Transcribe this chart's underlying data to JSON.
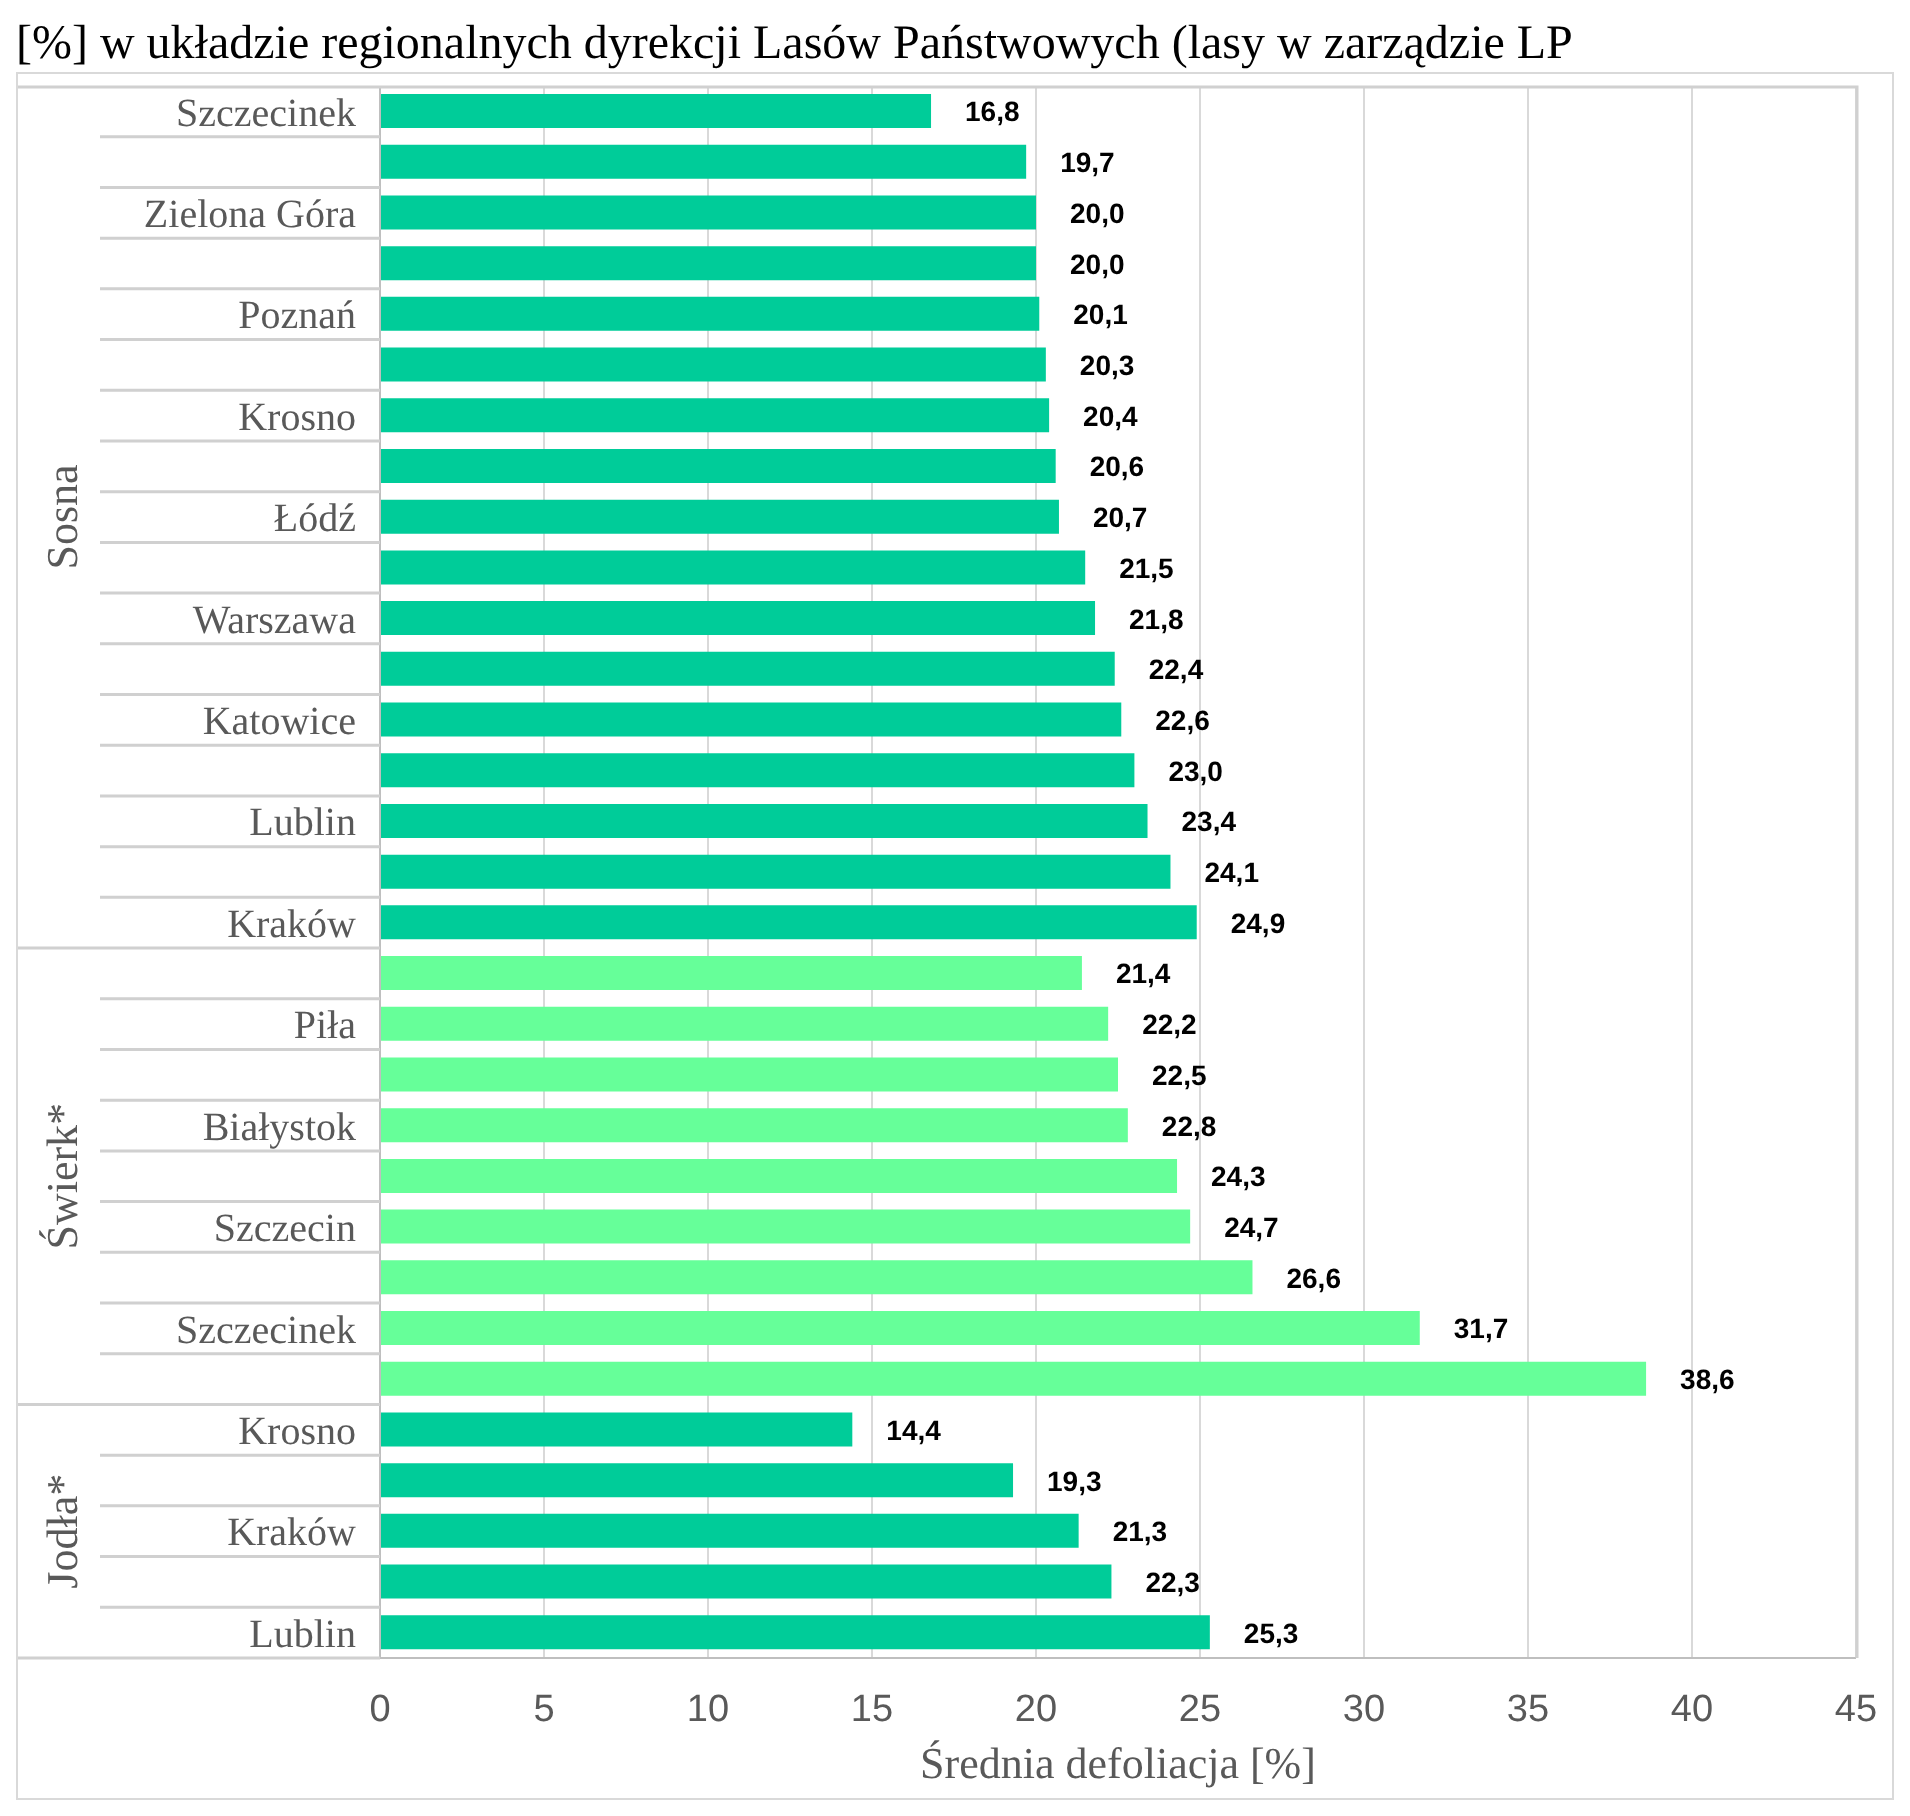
{
  "chart_data": {
    "type": "bar",
    "orientation": "horizontal",
    "title": "[%] w układzie regionalnych dyrekcji Lasów Państwowych (lasy w zarządzie LP",
    "xlabel": "Średnia defoliacja [%]",
    "categories": [
      "Szczecinek",
      null,
      "Zielona Góra",
      null,
      "Poznań",
      null,
      "Krosno",
      null,
      "Łódź",
      null,
      "Warszawa",
      null,
      "Katowice",
      null,
      "Lublin",
      null,
      "Kraków",
      null,
      "Piła",
      null,
      "Białystok",
      null,
      "Szczecin",
      null,
      "Szczecinek",
      null,
      "Krosno",
      null,
      "Kraków",
      null,
      "Lublin"
    ],
    "series": [
      {
        "name": "Sosna",
        "color": "#00cc99",
        "values": [
          16.8,
          19.7,
          20.0,
          20.0,
          20.1,
          20.3,
          20.4,
          20.6,
          20.7,
          21.5,
          21.8,
          22.4,
          22.6,
          23.0,
          23.4,
          24.1,
          24.9,
          null,
          null,
          null,
          null,
          null,
          null,
          null,
          null,
          null,
          null,
          null,
          null,
          null,
          null
        ],
        "value_labels": [
          "16,8",
          "19,7",
          "20,0",
          "20,0",
          "20,1",
          "20,3",
          "20,4",
          "20,6",
          "20,7",
          "21,5",
          "21,8",
          "22,4",
          "22,6",
          "23,0",
          "23,4",
          "24,1",
          "24,9",
          null,
          null,
          null,
          null,
          null,
          null,
          null,
          null,
          null,
          null,
          null,
          null,
          null,
          null
        ]
      },
      {
        "name": "Świerk*",
        "color": "#66ff99",
        "values": [
          null,
          null,
          null,
          null,
          null,
          null,
          null,
          null,
          null,
          null,
          null,
          null,
          null,
          null,
          null,
          null,
          null,
          21.4,
          22.2,
          22.5,
          22.8,
          24.3,
          24.7,
          26.6,
          31.7,
          38.6,
          null,
          null,
          null,
          null,
          null
        ],
        "value_labels": [
          null,
          null,
          null,
          null,
          null,
          null,
          null,
          null,
          null,
          null,
          null,
          null,
          null,
          null,
          null,
          null,
          null,
          "21,4",
          "22,2",
          "22,5",
          "22,8",
          "24,3",
          "24,7",
          "26,6",
          "31,7",
          "38,6",
          null,
          null,
          null,
          null,
          null
        ]
      },
      {
        "name": "Jodła*",
        "color": "#00cc99",
        "values": [
          null,
          null,
          null,
          null,
          null,
          null,
          null,
          null,
          null,
          null,
          null,
          null,
          null,
          null,
          null,
          null,
          null,
          null,
          null,
          null,
          null,
          null,
          null,
          null,
          null,
          null,
          14.4,
          19.3,
          21.3,
          22.3,
          25.3
        ],
        "value_labels": [
          null,
          null,
          null,
          null,
          null,
          null,
          null,
          null,
          null,
          null,
          null,
          null,
          null,
          null,
          null,
          null,
          null,
          null,
          null,
          null,
          null,
          null,
          null,
          null,
          null,
          null,
          "14,4",
          "19,3",
          "21,3",
          "22,3",
          "25,3"
        ]
      }
    ],
    "xlim": [
      0,
      45
    ],
    "xticks": [
      0,
      5,
      10,
      15,
      20,
      25,
      30,
      35,
      40,
      45
    ],
    "grid": "x"
  }
}
